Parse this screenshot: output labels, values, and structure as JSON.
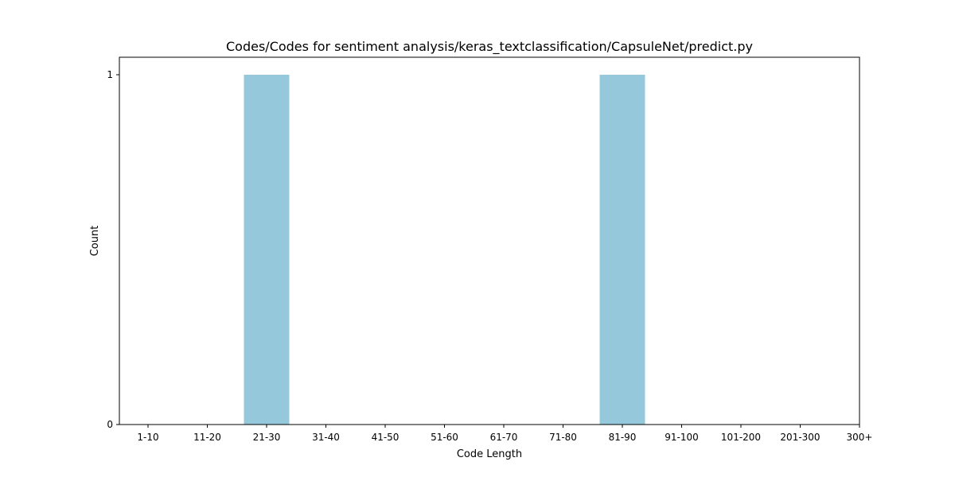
{
  "chart_data": {
    "type": "bar",
    "title": "Codes/Codes for sentiment analysis/keras_textclassification/CapsuleNet/predict.py",
    "xlabel": "Code Length",
    "ylabel": "Count",
    "categories": [
      "1-10",
      "11-20",
      "21-30",
      "31-40",
      "41-50",
      "51-60",
      "61-70",
      "71-80",
      "81-90",
      "91-100",
      "101-200",
      "201-300",
      "300+"
    ],
    "values": [
      0,
      0,
      1,
      0,
      0,
      0,
      0,
      0,
      1,
      0,
      0,
      0,
      0
    ],
    "ylim": [
      0,
      1.05
    ],
    "yticks": [
      0,
      1
    ],
    "bar_color": "#96c8dc",
    "grid": false,
    "legend": "none"
  }
}
